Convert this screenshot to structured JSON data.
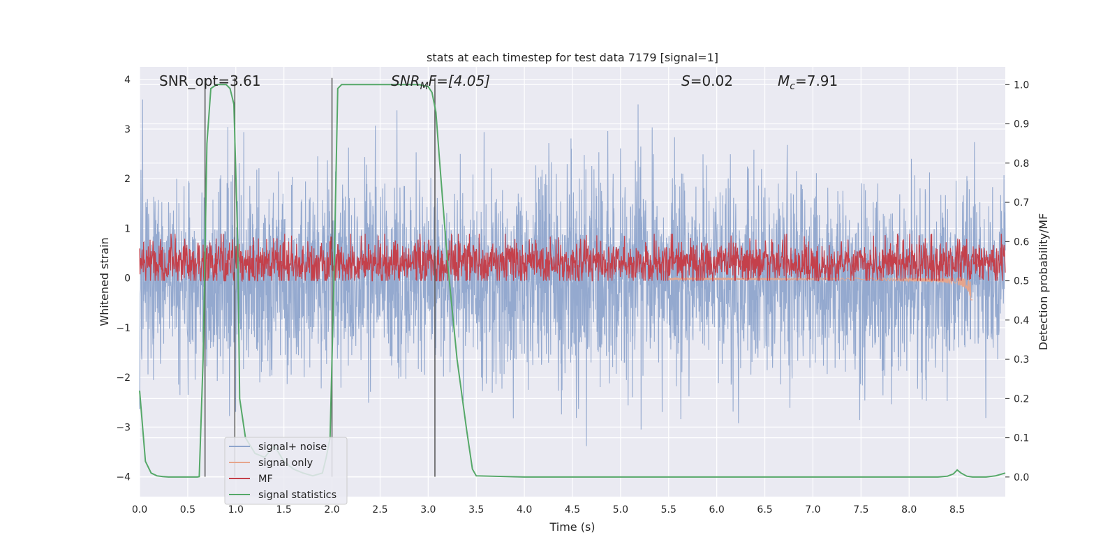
{
  "chart_data": {
    "type": "line",
    "title": "stats at each timestep for test data 7179 [signal=1]",
    "xlabel": "Time (s)",
    "ylabel_left": "Whitened strain",
    "ylabel_right": "Detection probability/MF",
    "xlim": [
      0.0,
      9.0
    ],
    "ylim_left": [
      -4.4,
      4.25
    ],
    "ylim_right": [
      -0.05,
      1.045
    ],
    "x_ticks": [
      0.0,
      0.5,
      1.0,
      1.5,
      2.0,
      2.5,
      3.0,
      3.5,
      4.0,
      4.5,
      5.0,
      5.5,
      6.0,
      6.5,
      7.0,
      7.5,
      8.0,
      8.5
    ],
    "x_tick_labels": [
      "0.0",
      "0.5",
      "1.0",
      "1.5",
      "2.0",
      "2.5",
      "3.0",
      "3.5",
      "4.0",
      "4.5",
      "5.0",
      "5.5",
      "6.0",
      "6.5",
      "7.0",
      "7.5",
      "8.0",
      "8.5"
    ],
    "y_left_ticks": [
      4,
      3,
      2,
      1,
      0,
      -1,
      -2,
      -3,
      -4
    ],
    "y_left_tick_labels": [
      "4",
      "3",
      "2",
      "1",
      "0",
      "−1",
      "−2",
      "−3",
      "−4"
    ],
    "y_right_ticks": [
      1.0,
      0.9,
      0.8,
      0.7,
      0.6,
      0.5,
      0.4,
      0.3,
      0.2,
      0.1,
      0.0
    ],
    "y_right_tick_labels": [
      "1.0",
      "0.9",
      "0.8",
      "0.7",
      "0.6",
      "0.5",
      "0.4",
      "0.3",
      "0.2",
      "0.1",
      "0.0"
    ],
    "annotations": {
      "snr_opt": "SNR_opt=3.61",
      "snr_mf_main": "SNR",
      "snr_mf_sub": "M",
      "snr_mf_rest": "F=[4.05]",
      "s_main": "S",
      "s_rest": "=0.02",
      "mc_main": "M",
      "mc_sub": "c",
      "mc_rest": "=7.91"
    },
    "vertical_lines_x": [
      0.68,
      0.99,
      2.0,
      3.07
    ],
    "vertical_lines_y_range": [
      -4.0,
      4.0
    ],
    "legend": {
      "position": "lower-left",
      "entries": [
        "signal+ noise",
        "signal only",
        "MF",
        "signal statistics"
      ]
    },
    "series": [
      {
        "name": "signal+ noise",
        "axis": "left",
        "color": "#8fa5cc",
        "description_stats": {
          "mean": 0.0,
          "std": 1.0,
          "min": -4.0,
          "max": 3.85
        }
      },
      {
        "name": "signal only",
        "axis": "left",
        "color": "#e6a58c",
        "chirp": {
          "start_x": 5.5,
          "end_x": 8.66,
          "min_amp": 0.01,
          "max_amp": 0.45
        }
      },
      {
        "name": "MF",
        "axis": "right",
        "color": "#c4404b",
        "description_stats": {
          "mean": 0.546,
          "std": 0.03,
          "min": 0.5,
          "max": 0.62
        }
      },
      {
        "name": "signal statistics",
        "axis": "right",
        "color": "#55a868",
        "x": [
          0.0,
          0.06,
          0.12,
          0.18,
          0.24,
          0.3,
          0.4,
          0.5,
          0.6,
          0.62,
          0.66,
          0.7,
          0.74,
          0.8,
          0.9,
          0.94,
          0.98,
          1.02,
          1.04,
          1.1,
          1.2,
          1.3,
          1.4,
          1.5,
          1.6,
          1.7,
          1.8,
          1.9,
          1.94,
          1.98,
          2.02,
          2.06,
          2.1,
          2.2,
          2.4,
          2.6,
          2.8,
          2.9,
          3.0,
          3.04,
          3.08,
          3.12,
          3.2,
          3.3,
          3.4,
          3.46,
          3.5,
          4.0,
          5.0,
          6.0,
          7.0,
          8.0,
          8.3,
          8.4,
          8.46,
          8.5,
          8.54,
          8.6,
          8.66,
          8.8,
          8.9,
          9.0
        ],
        "values": [
          0.22,
          0.04,
          0.01,
          0.003,
          0.001,
          0.0,
          0.0,
          0.0,
          0.0,
          0.001,
          0.3,
          0.85,
          0.99,
          1.0,
          1.0,
          0.99,
          0.95,
          0.6,
          0.2,
          0.1,
          0.06,
          0.05,
          0.08,
          0.04,
          0.02,
          0.01,
          0.003,
          0.01,
          0.05,
          0.1,
          0.5,
          0.99,
          1.0,
          1.0,
          1.0,
          1.0,
          1.0,
          1.0,
          0.995,
          0.98,
          0.93,
          0.8,
          0.55,
          0.3,
          0.12,
          0.02,
          0.003,
          0.0,
          0.0,
          0.0,
          0.0,
          0.0,
          0.0,
          0.002,
          0.008,
          0.018,
          0.01,
          0.002,
          0.0,
          0.0,
          0.003,
          0.01
        ]
      }
    ]
  }
}
